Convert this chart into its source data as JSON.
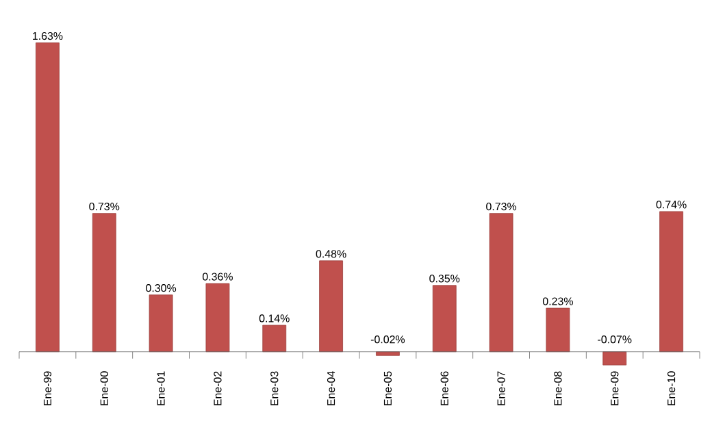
{
  "chart_data": {
    "type": "bar",
    "categories": [
      "Ene-99",
      "Ene-00",
      "Ene-01",
      "Ene-02",
      "Ene-03",
      "Ene-04",
      "Ene-05",
      "Ene-06",
      "Ene-07",
      "Ene-08",
      "Ene-09",
      "Ene-10"
    ],
    "values": [
      1.63,
      0.73,
      0.3,
      0.36,
      0.14,
      0.48,
      -0.02,
      0.35,
      0.73,
      0.23,
      -0.07,
      0.74
    ],
    "value_labels": [
      "1.63%",
      "0.73%",
      "0.30%",
      "0.36%",
      "0.14%",
      "0.48%",
      "-0.02%",
      "0.35%",
      "0.73%",
      "0.23%",
      "-0.07%",
      "0.74%"
    ],
    "color": "#c0504d"
  }
}
